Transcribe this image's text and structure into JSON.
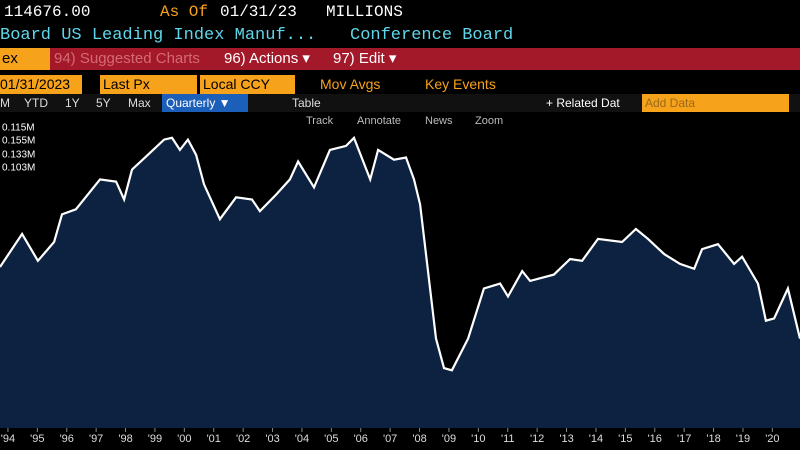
{
  "header": {
    "last_price": "114676.00",
    "as_of_label": "As Of",
    "as_of_date": "01/31/23",
    "units": "MILLIONS",
    "security": "Board US Leading Index Manuf...",
    "source": "Conference Board"
  },
  "menu": {
    "index": "ex",
    "suggested": "94) Suggested Charts",
    "actions": "96) Actions ▾",
    "edit": "97) Edit ▾"
  },
  "controls": {
    "date": "01/31/2023",
    "field": "Last Px",
    "currency": "Local CCY",
    "mov_avgs": "Mov Avgs",
    "key_events": "Key Events"
  },
  "ranges": {
    "items": [
      "M",
      "YTD",
      "1Y",
      "5Y",
      "Max"
    ],
    "period": "Quarterly ▼",
    "table": "Table",
    "related": "+ Related Dat",
    "add_data": "Add Data"
  },
  "tools": [
    "Track",
    "Annotate",
    "News",
    "Zoom"
  ],
  "legend": [
    "0.115M",
    "0.155M",
    "0.133M",
    "0.103M"
  ],
  "chart_data": {
    "type": "area",
    "color": "#0d2240",
    "line_color": "#ffffff",
    "x": [
      1993.73,
      1994.48,
      1995.02,
      1995.57,
      1995.84,
      1996.31,
      1997.13,
      1997.68,
      1997.95,
      1998.22,
      1998.76,
      1999.31,
      1999.58,
      1999.85,
      2000.12,
      2000.4,
      2000.67,
      2001.21,
      2001.76,
      2002.3,
      2002.57,
      2003.12,
      2003.59,
      2003.87,
      2004.41,
      2004.95,
      2005.5,
      2005.77,
      2006.32,
      2006.59,
      2007.13,
      2007.54,
      2007.81,
      2008.02,
      2008.56,
      2008.83,
      2009.1,
      2009.65,
      2010.19,
      2010.74,
      2011.01,
      2011.49,
      2011.76,
      2012.57,
      2013.12,
      2013.53,
      2014.07,
      2014.89,
      2015.36,
      2015.77,
      2016.32,
      2016.86,
      2017.34,
      2017.61,
      2018.15,
      2018.7,
      2018.97,
      2019.51,
      2019.78,
      2020.06,
      2020.53,
      2020.94
    ],
    "values": [
      126000,
      133400,
      127400,
      131600,
      137800,
      138900,
      145600,
      145100,
      141100,
      147800,
      151100,
      154500,
      154900,
      152200,
      154500,
      151100,
      144500,
      136700,
      141600,
      141100,
      138500,
      142200,
      145600,
      149600,
      143800,
      152200,
      153100,
      154900,
      145600,
      152200,
      150000,
      150500,
      145600,
      140000,
      110000,
      103400,
      102900,
      110000,
      121200,
      122300,
      119400,
      125100,
      122900,
      124300,
      127800,
      127400,
      132300,
      131600,
      134500,
      132300,
      128900,
      126700,
      125600,
      130000,
      131100,
      126700,
      128300,
      122300,
      114000,
      114500,
      121200,
      110000
    ],
    "xlim": [
      1993.73,
      2020.94
    ],
    "ylim": [
      90000,
      160000
    ],
    "xticks": [
      {
        "value": 1994,
        "label": "'94"
      },
      {
        "value": 1995,
        "label": "'95"
      },
      {
        "value": 1996,
        "label": "'96"
      },
      {
        "value": 1997,
        "label": "'97"
      },
      {
        "value": 1998,
        "label": "'98"
      },
      {
        "value": 1999,
        "label": "'99"
      },
      {
        "value": 2000,
        "label": "'00"
      },
      {
        "value": 2001,
        "label": "'01"
      },
      {
        "value": 2002,
        "label": "'02"
      },
      {
        "value": 2003,
        "label": "'03"
      },
      {
        "value": 2004,
        "label": "'04"
      },
      {
        "value": 2005,
        "label": "'05"
      },
      {
        "value": 2006,
        "label": "'06"
      },
      {
        "value": 2007,
        "label": "'07"
      },
      {
        "value": 2008,
        "label": "'08"
      },
      {
        "value": 2009,
        "label": "'09"
      },
      {
        "value": 2010,
        "label": "'10"
      },
      {
        "value": 2011,
        "label": "'11"
      },
      {
        "value": 2012,
        "label": "'12"
      },
      {
        "value": 2013,
        "label": "'13"
      },
      {
        "value": 2014,
        "label": "'14"
      },
      {
        "value": 2015,
        "label": "'15"
      },
      {
        "value": 2016,
        "label": "'16"
      },
      {
        "value": 2017,
        "label": "'17"
      },
      {
        "value": 2018,
        "label": "'18"
      },
      {
        "value": 2019,
        "label": "'19"
      },
      {
        "value": 2020,
        "label": "'20"
      }
    ]
  }
}
